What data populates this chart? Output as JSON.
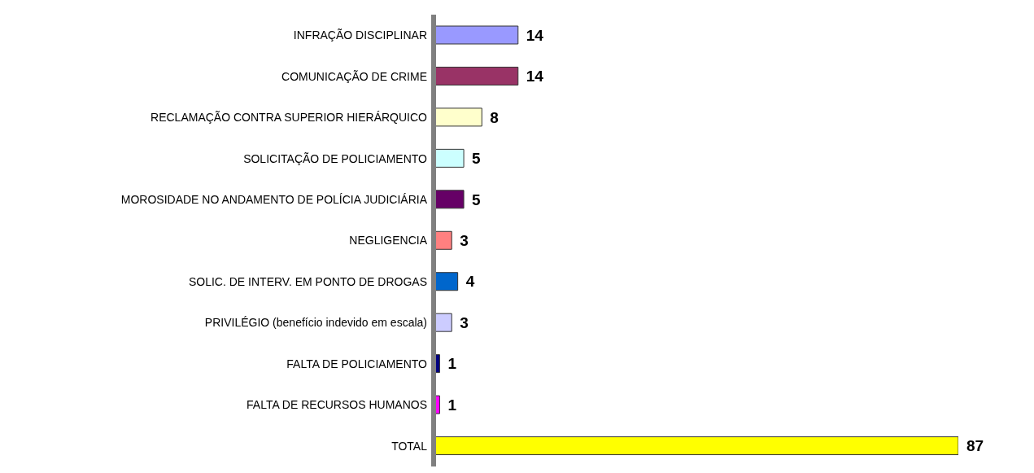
{
  "chart_data": {
    "type": "bar",
    "orientation": "horizontal",
    "data_labels": true,
    "categories": [
      "INFRAÇÃO DISCIPLINAR",
      "COMUNICAÇÃO DE CRIME",
      "RECLAMAÇÃO CONTRA SUPERIOR HIERÁRQUICO",
      "SOLICITAÇÃO DE POLICIAMENTO",
      "MOROSIDADE NO ANDAMENTO DE POLÍCIA JUDICIÁRIA",
      "NEGLIGENCIA",
      "SOLIC. DE INTERV. EM PONTO DE DROGAS",
      "PRIVILÉGIO (benefício indevido em escala)",
      "FALTA DE POLICIAMENTO",
      "FALTA DE RECURSOS HUMANOS",
      "TOTAL"
    ],
    "values": [
      14,
      14,
      8,
      5,
      5,
      3,
      4,
      3,
      1,
      1,
      87
    ],
    "colors": [
      "#9999ff",
      "#993366",
      "#ffffcc",
      "#ccffff",
      "#660066",
      "#ff8080",
      "#0066cc",
      "#ccccff",
      "#000080",
      "#ff00ff",
      "#ffff00"
    ]
  }
}
